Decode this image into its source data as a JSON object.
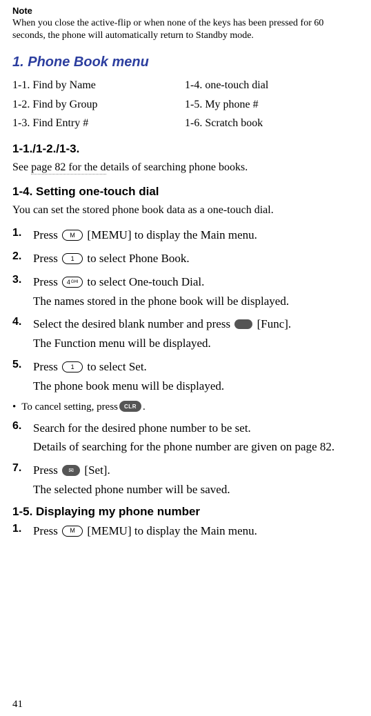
{
  "note": {
    "label": "Note",
    "body": "When you close the active-flip or when none of the keys has been pressed for 60 seconds, the phone will automatically return to Standby mode."
  },
  "section1": {
    "title": "1. Phone Book menu",
    "title_color": "#2c3e9f",
    "left": {
      "l1": "1-1. Find by Name",
      "l2": "1-2. Find by Group",
      "l3": "1-3. Find Entry #"
    },
    "right": {
      "l1": "1-4. one-touch dial",
      "l2": "1-5. My phone #",
      "l3": "1-6. Scratch book"
    }
  },
  "sub1": {
    "title": "1-1./1-2./1-3.",
    "body_pre": "See ",
    "body_link": "page 82 for the d",
    "body_post": "etails of searching phone books."
  },
  "sub2": {
    "title": "1-4. Setting one-touch dial",
    "intro": "You can set the stored phone book data as a one-touch dial.",
    "steps": {
      "s1": {
        "num": "1.",
        "pre": "Press ",
        "btn": "M",
        "post": " [MEMU] to display the Main menu."
      },
      "s2": {
        "num": "2.",
        "pre": "Press ",
        "btn": "1",
        "post": " to select Phone Book."
      },
      "s3": {
        "num": "3.",
        "pre": "Press ",
        "btn_l": "4",
        "btn_r": "GHI",
        "post": " to select One-touch Dial.",
        "sub": "The names stored in the phone book will be displayed."
      },
      "s4": {
        "num": "4.",
        "pre": "Select the desired blank number and press ",
        "post": " [Func].",
        "sub": "The Function menu will be displayed."
      },
      "s5": {
        "num": "5.",
        "pre": "Press ",
        "btn": "1",
        "post": " to select Set.",
        "sub": "The phone book menu will be displayed."
      },
      "bullet": {
        "pre": "To cancel setting, press ",
        "btn": "CLR",
        "post": "."
      },
      "s6": {
        "num": "6.",
        "line": "Search for the desired phone number to be set.",
        "sub": "Details of searching for the phone number are given on page 82."
      },
      "s7": {
        "num": "7.",
        "pre": "Press ",
        "mail": "✉",
        "post": " [Set].",
        "sub": "The selected phone number will be saved."
      }
    }
  },
  "sub3": {
    "title": "1-5. Displaying my phone number",
    "steps": {
      "s1": {
        "num": "1.",
        "pre": "Press ",
        "btn": "M",
        "post": " [MEMU] to display the Main menu."
      }
    }
  },
  "page_number": "41"
}
